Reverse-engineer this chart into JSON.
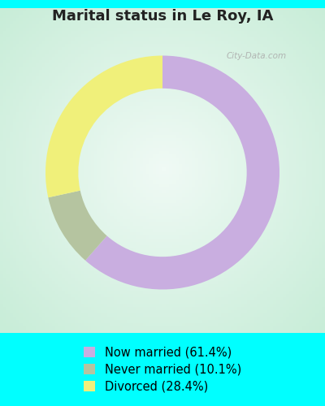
{
  "title": "Marital status in Le Roy, IA",
  "slices": [
    61.4,
    10.1,
    28.4
  ],
  "labels": [
    "Now married (61.4%)",
    "Never married (10.1%)",
    "Divorced (28.4%)"
  ],
  "colors": [
    "#c9aee0",
    "#b5c4a0",
    "#f0f07a"
  ],
  "outer_bg": "#00ffff",
  "chart_bg_center": "#f0faf5",
  "chart_bg_edge": "#c8edd8",
  "donut_width": 0.28,
  "start_angle": 90,
  "title_fontsize": 13,
  "legend_fontsize": 10.5,
  "watermark": "City-Data.com"
}
